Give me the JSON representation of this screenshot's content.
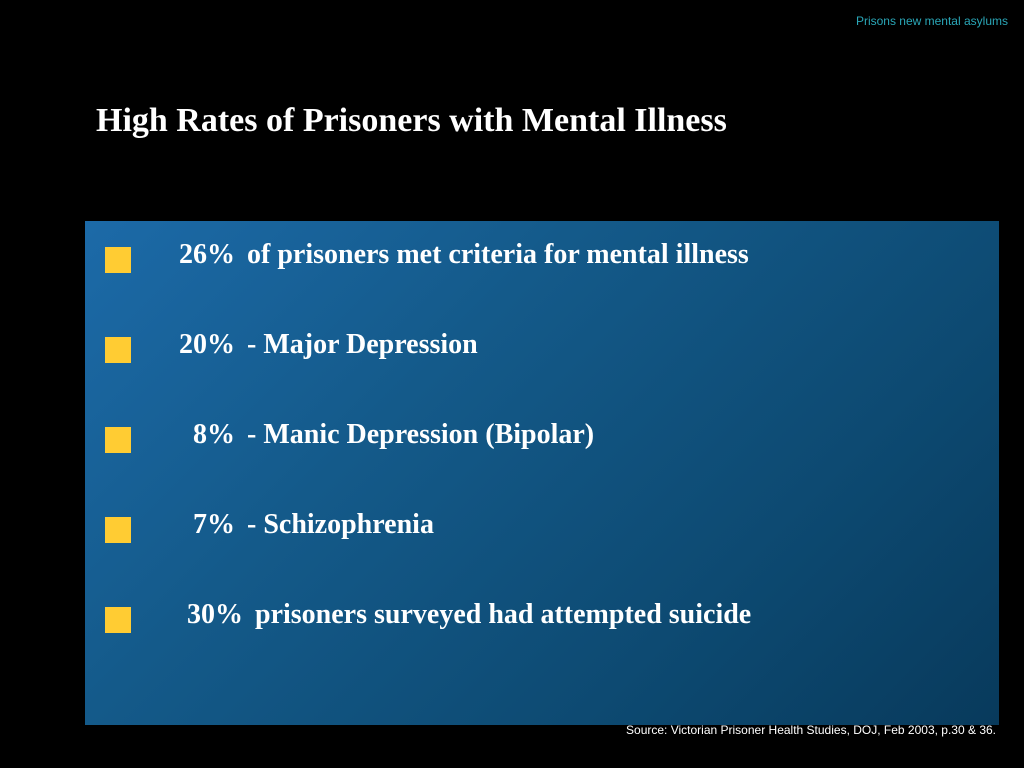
{
  "header_note": "Prisons new mental asylums",
  "title": "High Rates of Prisoners with Mental Illness",
  "bullets": [
    {
      "percent": "26%",
      "text": "of prisoners met criteria for mental illness"
    },
    {
      "percent": "20%",
      "text": "- Major Depression"
    },
    {
      "percent": "8%",
      "text": "- Manic Depression (Bipolar)"
    },
    {
      "percent": "7%",
      "text": "- Schizophrenia"
    },
    {
      "percent": "30%",
      "text": "prisoners surveyed had attempted suicide"
    }
  ],
  "source": "Source: Victorian Prisoner Health Studies, DOJ, Feb 2003, p.30 & 36.",
  "colors": {
    "background": "#000000",
    "panel": "#145a8a",
    "bullet": "#ffcc33",
    "header_note": "#2aa7b8",
    "text": "#ffffff"
  }
}
